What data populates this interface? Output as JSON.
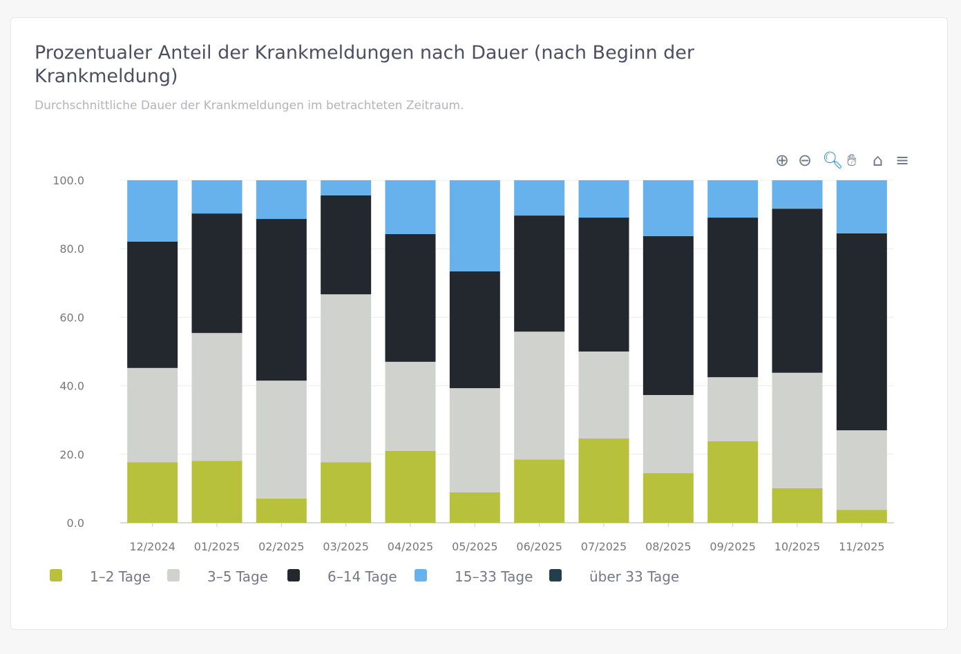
{
  "title": "Prozentualer Anteil der Krankmeldungen nach Dauer (nach Beginn der Krankmeldung)",
  "subtitle": "Durchschnittliche Dauer der Krankmeldungen im betrachteten Zeitraum.",
  "toolbar": [
    "zoom-in-icon",
    "zoom-out-icon",
    "selection-zoom-icon",
    "pan-hand-icon",
    "reset-home-icon",
    "menu-icon"
  ],
  "chart_data": {
    "type": "bar",
    "stacked": true,
    "categories": [
      "12/2024",
      "01/2025",
      "02/2025",
      "03/2025",
      "04/2025",
      "05/2025",
      "06/2025",
      "07/2025",
      "08/2025",
      "09/2025",
      "10/2025",
      "11/2025"
    ],
    "ylim": [
      0,
      100
    ],
    "yticks": [
      "0.0",
      "20.0",
      "40.0",
      "60.0",
      "80.0",
      "100.0"
    ],
    "grid": true,
    "legend": "bottom-left",
    "series": [
      {
        "name": "1–2 Tage",
        "color": "#b8c13b",
        "values": [
          17.7,
          18.1,
          7.1,
          17.7,
          21.0,
          8.9,
          18.5,
          24.6,
          14.5,
          23.8,
          10.1,
          3.8
        ]
      },
      {
        "name": "3–5 Tage",
        "color": "#d0d2cd",
        "values": [
          27.5,
          37.3,
          34.4,
          49.0,
          26.0,
          30.4,
          37.3,
          25.4,
          22.8,
          18.7,
          33.7,
          23.2
        ]
      },
      {
        "name": "6–14 Tage",
        "color": "#23272e",
        "values": [
          36.9,
          34.9,
          47.2,
          28.9,
          37.3,
          34.1,
          33.9,
          39.1,
          46.4,
          46.6,
          47.9,
          57.5
        ]
      },
      {
        "name": "15–33 Tage",
        "color": "#67b2ec",
        "values": [
          17.9,
          9.7,
          11.3,
          4.4,
          15.7,
          26.6,
          10.3,
          10.9,
          16.3,
          10.9,
          8.3,
          15.5
        ]
      },
      {
        "name": "über 33 Tage",
        "color": "#243f4c",
        "values": [
          0,
          0,
          0,
          0,
          0,
          0,
          0,
          0,
          0,
          0,
          0,
          0
        ]
      }
    ]
  }
}
